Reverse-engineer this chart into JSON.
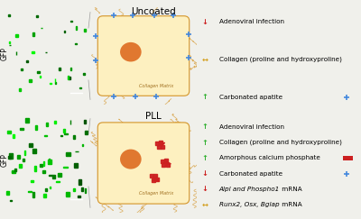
{
  "bg_color": "#f0f0eb",
  "title_top": "Uncoated",
  "title_bottom": "PLL",
  "gfp_label": "GFP",
  "collagen_matrix_label": "Collagen Matrix",
  "top_legend": [
    {
      "arrow": "↓",
      "color": "#cc2020",
      "text": "Adenoviral infection"
    },
    {
      "arrow": "↔",
      "color": "#d4a020",
      "text": "Collagen (proline and hydroxyproline)"
    },
    {
      "arrow": "↑",
      "color": "#30b030",
      "text": "Carbonated apatite",
      "has_diamond": true,
      "diamond_color": "#4488dd"
    }
  ],
  "bottom_legend": [
    {
      "arrow": "↑",
      "color": "#30b030",
      "text": "Adenoviral infection"
    },
    {
      "arrow": "↑",
      "color": "#30b030",
      "text": "Collagen (proline and hydroxyproline)"
    },
    {
      "arrow": "↑",
      "color": "#30b030",
      "text": "Amorphous calcium phosphate",
      "has_rect": true,
      "rect_color": "#cc2020"
    },
    {
      "arrow": "↓",
      "color": "#cc2020",
      "text": "Carbonated apatite",
      "has_diamond": true,
      "diamond_color": "#4488dd"
    },
    {
      "arrow": "↓",
      "color": "#cc2020",
      "text": " mRNA",
      "italic_prefix": "Alpl and Phospho1"
    },
    {
      "arrow": "↔",
      "color": "#d4a020",
      "text": " mRNA",
      "italic_prefix": "Runx2, Osx, Bglap"
    }
  ],
  "cell_color": "#fdf0c0",
  "nucleus_color": "#e07830",
  "collagen_color": "#d4952a",
  "diamond_color": "#4488dd",
  "acp_color": "#cc2020",
  "arrow_color_red": "#cc2020",
  "micro_image_bg": "#0a120a",
  "cell_rect": true
}
